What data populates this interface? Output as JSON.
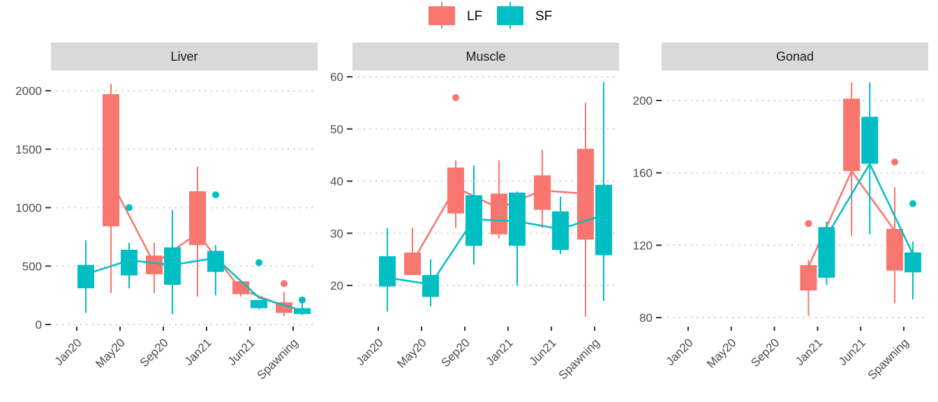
{
  "legend": {
    "position": "top",
    "items": [
      {
        "label": "LF",
        "color": "#F8766D"
      },
      {
        "label": "SF",
        "color": "#00BFC4"
      }
    ]
  },
  "chart_data": [
    {
      "type": "boxplot",
      "title": "Liver",
      "categories": [
        "Jan20",
        "May20",
        "Sep20",
        "Jan21",
        "Jun21",
        "Spawning"
      ],
      "ylim": [
        0,
        2100
      ],
      "yticks": [
        0,
        500,
        1000,
        1500,
        2000
      ],
      "grid": "horizontal-dotted",
      "series": [
        {
          "name": "LF",
          "color": "#F8766D",
          "boxes": [
            null,
            {
              "min": 270,
              "q1": 840,
              "median": 1230,
              "q3": 1970,
              "max": 2060,
              "outliers": [],
              "mean": 1230
            },
            {
              "min": 270,
              "q1": 430,
              "median": 520,
              "q3": 590,
              "max": 700,
              "outliers": [],
              "mean": 520
            },
            {
              "min": 240,
              "q1": 680,
              "median": 780,
              "q3": 1140,
              "max": 1350,
              "outliers": [],
              "mean": 780
            },
            {
              "min": 240,
              "q1": 260,
              "median": 290,
              "q3": 370,
              "max": 370,
              "outliers": [],
              "mean": 300
            },
            {
              "min": 70,
              "q1": 100,
              "median": 160,
              "q3": 190,
              "max": 280,
              "outliers": [
                350
              ],
              "mean": 160
            }
          ]
        },
        {
          "name": "SF",
          "color": "#00BFC4",
          "boxes": [
            {
              "min": 100,
              "q1": 310,
              "median": 430,
              "q3": 510,
              "max": 720,
              "outliers": [],
              "mean": 430
            },
            {
              "min": 310,
              "q1": 420,
              "median": 550,
              "q3": 640,
              "max": 700,
              "outliers": [
                1000
              ],
              "mean": 550
            },
            {
              "min": 90,
              "q1": 340,
              "median": 510,
              "q3": 660,
              "max": 980,
              "outliers": [],
              "mean": 510
            },
            {
              "min": 250,
              "q1": 450,
              "median": 570,
              "q3": 630,
              "max": 680,
              "outliers": [
                1110
              ],
              "mean": 570
            },
            {
              "min": 130,
              "q1": 140,
              "median": 230,
              "q3": 210,
              "max": 210,
              "outliers": [
                530
              ],
              "mean": 230
            },
            {
              "min": 80,
              "q1": 90,
              "median": 120,
              "q3": 140,
              "max": 200,
              "outliers": [
                210
              ],
              "mean": 120
            }
          ]
        }
      ]
    },
    {
      "type": "boxplot",
      "title": "Muscle",
      "categories": [
        "Jan20",
        "May20",
        "Sep20",
        "Jan21",
        "Jun21",
        "Spawning"
      ],
      "ylim": [
        13,
        61
      ],
      "yticks": [
        20,
        30,
        40,
        50,
        60
      ],
      "grid": "horizontal-dotted",
      "series": [
        {
          "name": "LF",
          "color": "#F8766D",
          "boxes": [
            null,
            {
              "min": 22,
              "q1": 22,
              "median": 24.5,
              "q3": 26.3,
              "max": 31,
              "outliers": [],
              "mean": 24.5
            },
            {
              "min": 31,
              "q1": 33.8,
              "median": 38.8,
              "q3": 42.6,
              "max": 44,
              "outliers": [
                56
              ],
              "mean": 38.8
            },
            {
              "min": 29,
              "q1": 29.8,
              "median": 34.8,
              "q3": 37.6,
              "max": 44,
              "outliers": [],
              "mean": 34.8
            },
            {
              "min": 31,
              "q1": 34.5,
              "median": 38.2,
              "q3": 41.1,
              "max": 46,
              "outliers": [],
              "mean": 38.2
            },
            {
              "min": 14,
              "q1": 28.8,
              "median": 37.6,
              "q3": 46.2,
              "max": 55,
              "outliers": [],
              "mean": 37.6
            }
          ]
        },
        {
          "name": "SF",
          "color": "#00BFC4",
          "boxes": [
            {
              "min": 15,
              "q1": 19.8,
              "median": 21.5,
              "q3": 25.6,
              "max": 31,
              "outliers": [],
              "mean": 21.5
            },
            {
              "min": 16,
              "q1": 17.8,
              "median": 20.2,
              "q3": 22,
              "max": 25,
              "outliers": [],
              "mean": 20.2
            },
            {
              "min": 24,
              "q1": 27.6,
              "median": 32.7,
              "q3": 37.3,
              "max": 43,
              "outliers": [],
              "mean": 32.7
            },
            {
              "min": 20,
              "q1": 27.6,
              "median": 32.3,
              "q3": 37.8,
              "max": 38,
              "outliers": [],
              "mean": 32.3
            },
            {
              "min": 26,
              "q1": 26.8,
              "median": 30.8,
              "q3": 34.2,
              "max": 37,
              "outliers": [],
              "mean": 30.8
            },
            {
              "min": 17,
              "q1": 25.8,
              "median": 33.5,
              "q3": 39.3,
              "max": 59,
              "outliers": [],
              "mean": 33.5
            }
          ]
        }
      ]
    },
    {
      "type": "boxplot",
      "title": "Gonad",
      "categories": [
        "Jan20",
        "May20",
        "Sep20",
        "Jan21",
        "Jun21",
        "Spawning"
      ],
      "ylim": [
        77,
        210
      ],
      "yticks": [
        80,
        120,
        160,
        200
      ],
      "grid": "horizontal-dotted",
      "series": [
        {
          "name": "LF",
          "color": "#F8766D",
          "boxes": [
            null,
            null,
            null,
            {
              "min": 81,
              "q1": 95,
              "median": 108,
              "q3": 109,
              "max": 112,
              "outliers": [
                132
              ],
              "mean": 108
            },
            {
              "min": 125,
              "q1": 161,
              "median": 175,
              "q3": 201,
              "max": 210,
              "outliers": [],
              "mean": 161
            },
            {
              "min": 88,
              "q1": 106,
              "median": 128,
              "q3": 129,
              "max": 152,
              "outliers": [
                166
              ],
              "mean": 128
            }
          ]
        },
        {
          "name": "SF",
          "color": "#00BFC4",
          "boxes": [
            null,
            null,
            null,
            {
              "min": 98,
              "q1": 102,
              "median": 125,
              "q3": 130,
              "max": 133,
              "outliers": [],
              "mean": 125
            },
            {
              "min": 126,
              "q1": 165,
              "median": 165,
              "q3": 191,
              "max": 210,
              "outliers": [],
              "mean": 165
            },
            {
              "min": 90,
              "q1": 105,
              "median": 115,
              "q3": 116,
              "max": 122,
              "outliers": [
                143
              ],
              "mean": 115
            }
          ]
        }
      ]
    }
  ]
}
